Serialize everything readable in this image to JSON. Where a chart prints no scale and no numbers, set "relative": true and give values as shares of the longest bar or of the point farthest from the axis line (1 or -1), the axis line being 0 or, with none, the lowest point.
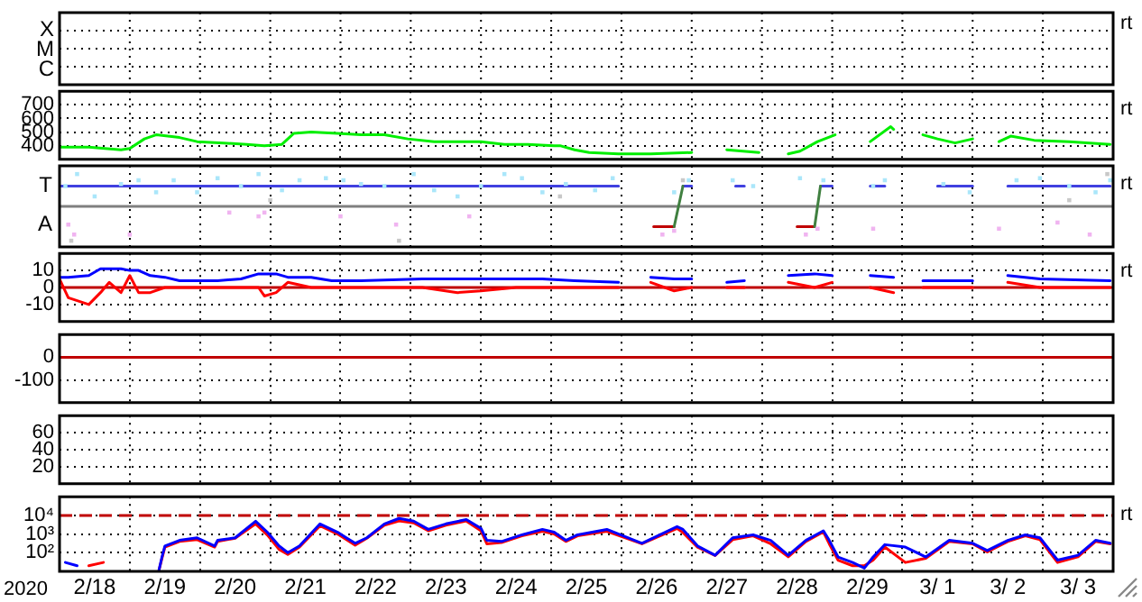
{
  "chart_data": [
    {
      "type": "other",
      "annotations": [
        "X",
        "M",
        "C",
        "rt"
      ]
    },
    {
      "type": "line",
      "ylim": [
        300,
        800
      ],
      "yticks": [
        700,
        600,
        500,
        400
      ],
      "xlim": [
        "2020-02-18",
        "2020-03-04"
      ],
      "xticks": [
        {
          "value": "2020-02-19",
          "label": null
        },
        {
          "value": "2020-02-20",
          "label": null
        },
        {
          "value": "2020-02-21",
          "label": null
        },
        {
          "value": "2020-02-22",
          "label": null
        },
        {
          "value": "2020-02-23",
          "label": null
        },
        {
          "value": "2020-02-24",
          "label": null
        },
        {
          "value": "2020-02-25",
          "label": null
        },
        {
          "value": "2020-02-26",
          "label": null
        },
        {
          "value": "2020-02-27",
          "label": null
        },
        {
          "value": "2020-02-28",
          "label": null
        },
        {
          "value": "2020-02-29",
          "label": null
        },
        {
          "value": "2020-03-01",
          "label": null
        },
        {
          "value": "2020-03-02",
          "label": null
        },
        {
          "value": "2020-03-03",
          "label": null
        }
      ],
      "tick_labels": "y",
      "grid": true,
      "annotations": [
        "rt"
      ],
      "x": [
        "2020-02-18T00:00",
        "2020-02-18T10:00",
        "2020-02-18T21:00",
        "2020-02-19T00:00",
        "2020-02-19T05:00",
        "2020-02-19T09:00",
        "2020-02-19T17:00",
        "2020-02-19T23:00",
        "2020-02-20T08:00",
        "2020-02-20T16:00",
        "2020-02-20T22:00",
        "2020-02-21T04:00",
        "2020-02-21T08:00",
        "2020-02-21T14:00",
        "2020-02-21T23:00",
        "2020-02-22T07:00",
        "2020-02-22T15:00",
        "2020-02-22T23:00",
        "2020-02-23T08:00",
        "2020-02-23T16:00",
        "2020-02-24T00:00",
        "2020-02-24T08:00",
        "2020-02-24T16:00",
        "2020-02-25T01:00",
        "2020-02-25T03:00",
        "2020-02-25T08:00",
        "2020-02-25T13:00",
        "2020-02-25T23:00",
        "2020-02-26T10:00",
        "2020-02-27T00:00",
        "2020-02-27T06:00",
        "2020-02-27T12:00",
        "2020-02-27T23:00",
        "2020-02-28T04:00",
        "2020-02-28T09:00",
        "2020-02-28T13:00",
        "2020-02-28T19:00",
        "2020-02-29T01:00",
        "2020-02-29T07:00",
        "2020-02-29T13:00",
        "2020-02-29T20:00",
        "2020-02-29T21:00",
        "2020-03-01T02:00",
        "2020-03-01T07:00",
        "2020-03-01T12:00",
        "2020-03-01T18:00",
        "2020-03-02T00:00",
        "2020-03-02T04:00",
        "2020-03-02T09:00",
        "2020-03-02T13:00",
        "2020-03-02T21:00",
        "2020-03-03T09:00",
        "2020-03-03T23:00"
      ],
      "series": [
        {
          "color": "#00ee00",
          "values": [
            390,
            390,
            370,
            380,
            450,
            480,
            460,
            430,
            420,
            410,
            400,
            410,
            490,
            500,
            490,
            480,
            480,
            450,
            430,
            430,
            430,
            410,
            410,
            400,
            400,
            370,
            350,
            340,
            340,
            350,
            null,
            370,
            350,
            null,
            340,
            360,
            430,
            480,
            null,
            430,
            540,
            520,
            null,
            480,
            450,
            420,
            450,
            null,
            430,
            470,
            440,
            430,
            410
          ]
        }
      ]
    },
    {
      "type": "line",
      "relative": true,
      "xlim": [
        "2020-02-18",
        "2020-03-04"
      ],
      "xticks": [
        {
          "value": "2020-02-19",
          "label": null
        },
        {
          "value": "2020-02-20",
          "label": null
        },
        {
          "value": "2020-02-21",
          "label": null
        },
        {
          "value": "2020-02-22",
          "label": null
        },
        {
          "value": "2020-02-23",
          "label": null
        },
        {
          "value": "2020-02-24",
          "label": null
        },
        {
          "value": "2020-02-25",
          "label": null
        },
        {
          "value": "2020-02-26",
          "label": null
        },
        {
          "value": "2020-02-27",
          "label": null
        },
        {
          "value": "2020-02-28",
          "label": null
        },
        {
          "value": "2020-02-29",
          "label": null
        },
        {
          "value": "2020-03-01",
          "label": null
        },
        {
          "value": "2020-03-02",
          "label": null
        },
        {
          "value": "2020-03-03",
          "label": null
        }
      ],
      "tick_labels": "y",
      "grid": true,
      "annotations": [
        "rt"
      ],
      "ref_lines": [
        {
          "axis": "y",
          "value": 0,
          "color": "#808080"
        }
      ],
      "series": [
        {
          "type": "scatter",
          "marker": "square",
          "color": "#aae6fa",
          "x": [
            "2020-02-18T02:00",
            "2020-02-18T06:00",
            "2020-02-18T12:00",
            "2020-02-18T21:00",
            "2020-02-19T03:00",
            "2020-02-19T09:00",
            "2020-02-19T15:00",
            "2020-02-19T23:00",
            "2020-02-20T06:00",
            "2020-02-20T14:00",
            "2020-02-20T20:00",
            "2020-02-21T04:00",
            "2020-02-21T10:00",
            "2020-02-21T19:00",
            "2020-02-22T01:00",
            "2020-02-22T07:00",
            "2020-02-22T15:00",
            "2020-02-23T01:00",
            "2020-02-23T08:00",
            "2020-02-23T16:00",
            "2020-02-24T00:00",
            "2020-02-24T08:00",
            "2020-02-24T14:00",
            "2020-02-24T21:00",
            "2020-02-25T05:00",
            "2020-02-25T15:00",
            "2020-02-25T21:00",
            "2020-02-26T18:00",
            "2020-02-26T23:00",
            "2020-02-27T14:00",
            "2020-02-27T21:00",
            "2020-02-28T13:00",
            "2020-02-28T21:00",
            "2020-02-29T14:00",
            "2020-02-29T18:00",
            "2020-03-01T14:00",
            "2020-03-01T23:00",
            "2020-03-02T15:00",
            "2020-03-02T23:00",
            "2020-03-03T09:00",
            "2020-03-03T18:00",
            "2020-03-03T23:00"
          ],
          "values": [
            0.59,
            0.94,
            0.29,
            0.65,
            0.76,
            0.41,
            0.76,
            0.41,
            0.82,
            0.59,
            0.94,
            0.47,
            0.76,
            0.82,
            0.76,
            0.65,
            0.59,
            0.94,
            0.47,
            0.29,
            0.59,
            0.94,
            0.82,
            0.41,
            0.65,
            0.47,
            0.82,
            0.41,
            0.76,
            0.76,
            0.59,
            0.82,
            0.76,
            0.59,
            0.76,
            0.65,
            0.41,
            0.76,
            0.82,
            0.59,
            0.41,
            0.76
          ]
        },
        {
          "type": "scatter",
          "marker": "square",
          "name": "A",
          "color": "#f0b4f0",
          "x": [
            "2020-02-18T03:00",
            "2020-02-18T05:00",
            "2020-02-19T00:00",
            "2020-02-20T10:00",
            "2020-02-20T20:00",
            "2020-02-20T22:00",
            "2020-02-22T00:00",
            "2020-02-22T19:00",
            "2020-02-23T20:00",
            "2020-02-26T14:00",
            "2020-02-26T18:00",
            "2020-02-28T15:00",
            "2020-02-28T19:00",
            "2020-02-29T14:00",
            "2020-03-02T09:00",
            "2020-03-03T05:00",
            "2020-03-03T16:00"
          ],
          "values": [
            -0.53,
            -0.82,
            -0.82,
            -0.18,
            -0.29,
            -0.18,
            -0.29,
            -0.53,
            -0.29,
            -0.82,
            -0.71,
            -0.82,
            -0.65,
            -0.65,
            -0.65,
            -0.47,
            -0.82
          ]
        },
        {
          "type": "scatter",
          "marker": "square",
          "color": "#c8c8c8",
          "x": [
            "2020-02-18T04:00",
            "2020-02-21T00:00",
            "2020-02-22T20:00",
            "2020-02-25T03:00",
            "2020-02-26T21:00",
            "2020-03-03T09:00",
            "2020-03-03T22:00"
          ],
          "values": [
            -1,
            0.18,
            -1,
            0.29,
            0.76,
            0.18,
            0.94
          ]
        },
        {
          "name": "T",
          "color": "#4040e0",
          "x": [
            "2020-02-18T00:00",
            "2020-02-25T23:00",
            "2020-02-26T10:00",
            "2020-02-26T21:00",
            "2020-02-27T00:00",
            "2020-02-27T06:00",
            "2020-02-27T15:00",
            "2020-02-27T18:00",
            "2020-02-28T06:00",
            "2020-02-28T20:00",
            "2020-02-29T00:00",
            "2020-02-29T06:00",
            "2020-02-29T13:00",
            "2020-02-29T18:00",
            "2020-03-01T06:00",
            "2020-03-01T12:00",
            "2020-03-02T00:00",
            "2020-03-02T06:00",
            "2020-03-02T12:00",
            "2020-03-03T23:00"
          ],
          "values": [
            0.59,
            0.59,
            null,
            0.59,
            0.59,
            null,
            0.59,
            0.59,
            null,
            0.59,
            0.59,
            null,
            0.59,
            0.59,
            null,
            0.59,
            0.59,
            null,
            0.59,
            0.59
          ]
        },
        {
          "color": "#c00000",
          "x": [
            "2020-02-26T11:00",
            "2020-02-26T18:00",
            "2020-02-27T12:00",
            "2020-02-28T12:00",
            "2020-02-28T18:00"
          ],
          "values": [
            -0.59,
            -0.59,
            null,
            -0.59,
            -0.59
          ]
        },
        {
          "color": "#408040",
          "x": [
            "2020-02-26T18:00",
            "2020-02-26T21:00",
            "2020-02-27T12:00",
            "2020-02-28T18:00",
            "2020-02-28T20:00"
          ],
          "values": [
            -0.59,
            0.59,
            null,
            -0.59,
            0.59
          ]
        }
      ]
    },
    {
      "type": "line",
      "ylim": [
        -20,
        20
      ],
      "yticks": [
        10,
        0,
        -10
      ],
      "xlim": [
        "2020-02-18",
        "2020-03-04"
      ],
      "xticks": [
        {
          "value": "2020-02-19",
          "label": null
        },
        {
          "value": "2020-02-20",
          "label": null
        },
        {
          "value": "2020-02-21",
          "label": null
        },
        {
          "value": "2020-02-22",
          "label": null
        },
        {
          "value": "2020-02-23",
          "label": null
        },
        {
          "value": "2020-02-24",
          "label": null
        },
        {
          "value": "2020-02-25",
          "label": null
        },
        {
          "value": "2020-02-26",
          "label": null
        },
        {
          "value": "2020-02-27",
          "label": null
        },
        {
          "value": "2020-02-28",
          "label": null
        },
        {
          "value": "2020-02-29",
          "label": null
        },
        {
          "value": "2020-03-01",
          "label": null
        },
        {
          "value": "2020-03-02",
          "label": null
        },
        {
          "value": "2020-03-03",
          "label": null
        }
      ],
      "tick_labels": "y",
      "grid": true,
      "annotations": [
        "rt"
      ],
      "ref_lines": [
        {
          "axis": "y",
          "value": 0,
          "color": "#c00000"
        }
      ],
      "x": [
        "2020-02-18T00:00",
        "2020-02-18T03:00",
        "2020-02-18T10:00",
        "2020-02-18T14:00",
        "2020-02-18T17:00",
        "2020-02-18T21:00",
        "2020-02-19T00:00",
        "2020-02-19T03:00",
        "2020-02-19T07:00",
        "2020-02-19T12:00",
        "2020-02-19T17:00",
        "2020-02-20T06:00",
        "2020-02-20T14:00",
        "2020-02-20T20:00",
        "2020-02-20T22:00",
        "2020-02-21T02:00",
        "2020-02-21T06:00",
        "2020-02-21T14:00",
        "2020-02-21T21:00",
        "2020-02-22T07:00",
        "2020-02-23T04:00",
        "2020-02-23T16:00",
        "2020-02-24T00:00",
        "2020-02-24T12:00",
        "2020-02-24T21:00",
        "2020-02-25T08:00",
        "2020-02-25T23:00",
        "2020-02-26T04:00",
        "2020-02-26T10:00",
        "2020-02-26T18:00",
        "2020-02-27T00:00",
        "2020-02-27T06:00",
        "2020-02-27T12:00",
        "2020-02-27T18:00",
        "2020-02-28T02:00",
        "2020-02-28T09:00",
        "2020-02-28T18:00",
        "2020-02-29T00:00",
        "2020-02-29T07:00",
        "2020-02-29T13:00",
        "2020-02-29T21:00",
        "2020-03-01T02:00",
        "2020-03-01T07:00",
        "2020-03-02T00:00",
        "2020-03-02T06:00",
        "2020-03-02T12:00",
        "2020-03-02T23:00",
        "2020-03-03T23:00"
      ],
      "series": [
        {
          "color": "#0000ff",
          "values": [
            6,
            6,
            7,
            11,
            11,
            11,
            10,
            10,
            7,
            6,
            4,
            4,
            5,
            8,
            8,
            8,
            6,
            6,
            4,
            4,
            5,
            5,
            5,
            5,
            5,
            4,
            3,
            null,
            6,
            5,
            5,
            null,
            3,
            4,
            null,
            7,
            8,
            7,
            null,
            7,
            6,
            null,
            4,
            4,
            null,
            7,
            5,
            4
          ]
        },
        {
          "color": "#ff0000",
          "values": [
            5,
            -6,
            -10,
            -3,
            3,
            -3,
            7,
            -3,
            -3,
            0,
            0,
            0,
            0,
            0,
            -5,
            -3,
            3,
            0,
            0,
            0,
            0,
            -3,
            -2,
            0,
            0,
            0,
            0,
            null,
            3,
            -2,
            0,
            null,
            0,
            0,
            null,
            3,
            0,
            3,
            null,
            0,
            -3,
            null,
            0,
            0,
            null,
            3,
            0,
            0
          ]
        }
      ]
    },
    {
      "type": "line",
      "ylim": [
        -200,
        100
      ],
      "yticks": [
        0,
        -100
      ],
      "xlim": [
        "2020-02-18",
        "2020-03-04"
      ],
      "xticks": [
        {
          "value": "2020-02-19",
          "label": null
        },
        {
          "value": "2020-02-20",
          "label": null
        },
        {
          "value": "2020-02-21",
          "label": null
        },
        {
          "value": "2020-02-22",
          "label": null
        },
        {
          "value": "2020-02-23",
          "label": null
        },
        {
          "value": "2020-02-24",
          "label": null
        },
        {
          "value": "2020-02-25",
          "label": null
        },
        {
          "value": "2020-02-26",
          "label": null
        },
        {
          "value": "2020-02-27",
          "label": null
        },
        {
          "value": "2020-02-28",
          "label": null
        },
        {
          "value": "2020-02-29",
          "label": null
        },
        {
          "value": "2020-03-01",
          "label": null
        },
        {
          "value": "2020-03-02",
          "label": null
        },
        {
          "value": "2020-03-03",
          "label": null
        }
      ],
      "tick_labels": "y",
      "grid": true,
      "ref_lines": [
        {
          "axis": "y",
          "value": 0,
          "color": "#c00000"
        }
      ]
    },
    {
      "type": "line",
      "ylim": [
        0,
        80
      ],
      "yticks": [
        60,
        40,
        20
      ],
      "xlim": [
        "2020-02-18",
        "2020-03-04"
      ],
      "xticks": [
        {
          "value": "2020-02-19",
          "label": null
        },
        {
          "value": "2020-02-20",
          "label": null
        },
        {
          "value": "2020-02-21",
          "label": null
        },
        {
          "value": "2020-02-22",
          "label": null
        },
        {
          "value": "2020-02-23",
          "label": null
        },
        {
          "value": "2020-02-24",
          "label": null
        },
        {
          "value": "2020-02-25",
          "label": null
        },
        {
          "value": "2020-02-26",
          "label": null
        },
        {
          "value": "2020-02-27",
          "label": null
        },
        {
          "value": "2020-02-28",
          "label": null
        },
        {
          "value": "2020-02-29",
          "label": null
        },
        {
          "value": "2020-03-01",
          "label": null
        },
        {
          "value": "2020-03-02",
          "label": null
        },
        {
          "value": "2020-03-03",
          "label": null
        }
      ],
      "tick_labels": "y",
      "grid": true
    },
    {
      "type": "line",
      "log": true,
      "ylim": [
        10,
        100000
      ],
      "yticks": [
        {
          "value": 10000,
          "label": "10⁴"
        },
        {
          "value": 1000,
          "label": "10³"
        },
        {
          "value": 100,
          "label": "10²"
        }
      ],
      "xlim": [
        "2020-02-18",
        "2020-03-04"
      ],
      "xticks": [
        {
          "value": "2020-02-18T12:00",
          "label": "2/18"
        },
        {
          "value": "2020-02-19",
          "label": null
        },
        {
          "value": "2020-02-19T12:00",
          "label": "2/19"
        },
        {
          "value": "2020-02-20",
          "label": null
        },
        {
          "value": "2020-02-20T12:00",
          "label": "2/20"
        },
        {
          "value": "2020-02-21",
          "label": null
        },
        {
          "value": "2020-02-21T12:00",
          "label": "2/21"
        },
        {
          "value": "2020-02-22",
          "label": null
        },
        {
          "value": "2020-02-22T12:00",
          "label": "2/22"
        },
        {
          "value": "2020-02-23",
          "label": null
        },
        {
          "value": "2020-02-23T12:00",
          "label": "2/23"
        },
        {
          "value": "2020-02-24",
          "label": null
        },
        {
          "value": "2020-02-24T12:00",
          "label": "2/24"
        },
        {
          "value": "2020-02-25",
          "label": null
        },
        {
          "value": "2020-02-25T12:00",
          "label": "2/25"
        },
        {
          "value": "2020-02-26",
          "label": null
        },
        {
          "value": "2020-02-26T12:00",
          "label": "2/26"
        },
        {
          "value": "2020-02-27",
          "label": null
        },
        {
          "value": "2020-02-27T12:00",
          "label": "2/27"
        },
        {
          "value": "2020-02-28",
          "label": null
        },
        {
          "value": "2020-02-28T12:00",
          "label": "2/28"
        },
        {
          "value": "2020-02-29",
          "label": null
        },
        {
          "value": "2020-02-29T12:00",
          "label": "2/29"
        },
        {
          "value": "2020-03-01",
          "label": null
        },
        {
          "value": "2020-03-01T12:00",
          "label": "3/ 1"
        },
        {
          "value": "2020-03-02",
          "label": null
        },
        {
          "value": "2020-03-02T12:00",
          "label": "3/ 2"
        },
        {
          "value": "2020-03-03",
          "label": null
        },
        {
          "value": "2020-03-03T12:00",
          "label": "3/ 3"
        }
      ],
      "grid": true,
      "annotations": [
        "rt"
      ],
      "xlabel": "2020",
      "ref_lines": [
        {
          "axis": "y",
          "value": 10000,
          "color": "#c00000",
          "line_style": "dashed"
        }
      ],
      "x": [
        "2020-02-18T02:00",
        "2020-02-18T06:00",
        "2020-02-18T10:00",
        "2020-02-18T15:00",
        "2020-02-18T21:00",
        "2020-02-19T10:00",
        "2020-02-19T11:00",
        "2020-02-19T12:00",
        "2020-02-19T17:00",
        "2020-02-19T23:00",
        "2020-02-20T05:00",
        "2020-02-20T06:00",
        "2020-02-20T12:00",
        "2020-02-20T19:00",
        "2020-02-20T23:00",
        "2020-02-21T03:00",
        "2020-02-21T06:00",
        "2020-02-21T10:00",
        "2020-02-21T17:00",
        "2020-02-21T23:00",
        "2020-02-22T02:00",
        "2020-02-22T05:00",
        "2020-02-22T09:00",
        "2020-02-22T15:00",
        "2020-02-22T20:00",
        "2020-02-23T01:00",
        "2020-02-23T06:00",
        "2020-02-23T12:00",
        "2020-02-23T19:00",
        "2020-02-24T00:00",
        "2020-02-24T02:00",
        "2020-02-24T07:00",
        "2020-02-24T14:00",
        "2020-02-24T21:00",
        "2020-02-25T01:00",
        "2020-02-25T05:00",
        "2020-02-25T09:00",
        "2020-02-25T19:00",
        "2020-02-26T07:00",
        "2020-02-26T19:00",
        "2020-02-26T21:00",
        "2020-02-27T02:00",
        "2020-02-27T08:00",
        "2020-02-27T14:00",
        "2020-02-27T21:00",
        "2020-02-28T03:00",
        "2020-02-28T09:00",
        "2020-02-28T15:00",
        "2020-02-28T21:00",
        "2020-02-28T23:00",
        "2020-02-29T02:00",
        "2020-02-29T07:00",
        "2020-02-29T11:00",
        "2020-02-29T14:00",
        "2020-02-29T18:00",
        "2020-03-01T01:00",
        "2020-03-01T08:00",
        "2020-03-01T16:00",
        "2020-03-02T00:00",
        "2020-03-02T05:00",
        "2020-03-02T12:00",
        "2020-03-02T18:00",
        "2020-03-02T23:00",
        "2020-03-03T05:00",
        "2020-03-03T12:00",
        "2020-03-03T18:00",
        "2020-03-03T23:00"
      ],
      "series": [
        {
          "color": "#ff0000",
          "values": [
            null,
            null,
            20,
            30,
            null,
            12,
            50,
            200,
            400,
            500,
            200,
            400,
            600,
            3500,
            900,
            150,
            80,
            200,
            2800,
            1000,
            500,
            250,
            600,
            3000,
            5000,
            4000,
            1500,
            3000,
            5000,
            1500,
            300,
            350,
            800,
            1400,
            1000,
            400,
            800,
            1400,
            300,
            2000,
            1200,
            200,
            70,
            500,
            800,
            300,
            60,
            400,
            1300,
            300,
            40,
            20,
            20,
            40,
            200,
            30,
            50,
            400,
            300,
            110,
            400,
            800,
            500,
            30,
            60,
            400,
            300
          ]
        },
        {
          "color": "#0000ff",
          "values": [
            30,
            20,
            null,
            null,
            null,
            12,
            59,
            230,
            460,
            630,
            230,
            460,
            630,
            4900,
            1260,
            230,
            100,
            230,
            3500,
            1260,
            630,
            320,
            630,
            3500,
            6900,
            4900,
            1780,
            3500,
            6000,
            2040,
            460,
            400,
            910,
            1780,
            1260,
            460,
            910,
            1780,
            320,
            2500,
            1780,
            230,
            73,
            630,
            910,
            460,
            73,
            460,
            1500,
            460,
            59,
            30,
            15,
            59,
            270,
            200,
            59,
            460,
            320,
            130,
            460,
            910,
            630,
            40,
            73,
            460,
            320
          ]
        }
      ]
    }
  ]
}
